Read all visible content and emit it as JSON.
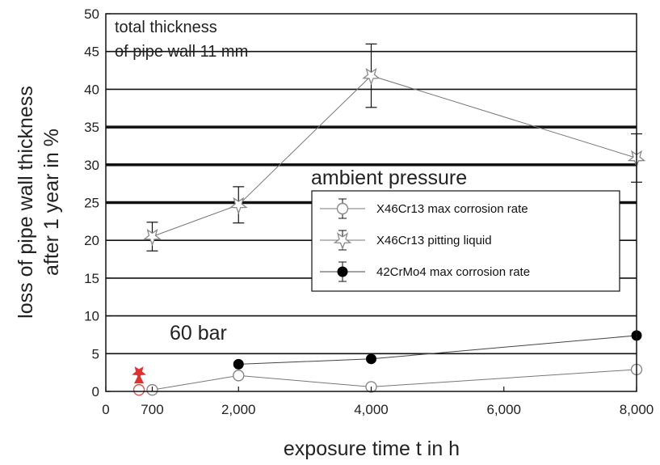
{
  "chart_data": {
    "type": "scatter",
    "xlabel": "exposure time t in h",
    "ylabel_line1": "loss of pipe wall thickness",
    "ylabel_line2": "after 1 year in %",
    "xlim": [
      0,
      8000
    ],
    "ylim": [
      0,
      50
    ],
    "x_ticks": [
      0,
      700,
      2000,
      4000,
      6000,
      8000
    ],
    "x_tick_labels": [
      "0",
      "700",
      "2,000",
      "4,000",
      "6,000",
      "8,000"
    ],
    "y_ticks": [
      0,
      5,
      10,
      15,
      20,
      25,
      30,
      35,
      40,
      45,
      50
    ],
    "y_tick_labels": [
      "0",
      "5",
      "10",
      "15",
      "20",
      "25",
      "30",
      "35",
      "40",
      "45",
      "50"
    ],
    "grid": "horizontal",
    "thick_grid_lines": [
      25,
      30,
      35
    ],
    "annotations": {
      "total_line1": "total thickness",
      "total_line2": "of pipe wall 11 mm",
      "ambient": "ambient pressure",
      "bar60": "60 bar"
    },
    "legend_position": "right-center",
    "series": [
      {
        "name": "X46Cr13 max corrosion rate",
        "marker": "open-circle",
        "color": "#888888",
        "x": [
          700,
          2000,
          4000,
          8000
        ],
        "y": [
          0.2,
          2.1,
          0.6,
          2.9
        ]
      },
      {
        "name": "X46Cr13 pitting liquid",
        "marker": "open-star",
        "color": "#888888",
        "x": [
          700,
          2000,
          4000,
          8000
        ],
        "y": [
          20.5,
          24.7,
          41.8,
          30.9
        ],
        "error": [
          1.9,
          2.4,
          4.2,
          3.2
        ]
      },
      {
        "name": "42CrMo4 max corrosion rate",
        "marker": "filled-circle",
        "color": "#000000",
        "x": [
          2000,
          4000,
          8000
        ],
        "y": [
          3.6,
          4.3,
          7.4
        ]
      }
    ],
    "red_markers": [
      {
        "marker": "open-circle",
        "color": "#e05050",
        "x": 500,
        "y": 0.2
      },
      {
        "marker": "star",
        "color": "#e03030",
        "x": 500,
        "y": 2.5
      },
      {
        "marker": "triangle",
        "color": "#e03030",
        "x": 500,
        "y": 1.7
      }
    ]
  }
}
